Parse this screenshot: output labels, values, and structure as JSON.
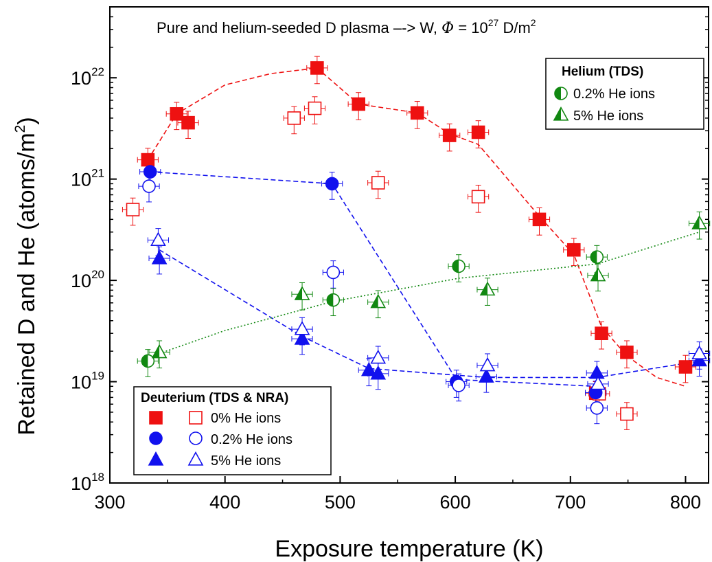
{
  "chart_data": {
    "type": "scatter",
    "title": "Pure and helium-seeded D plasma –-> W,",
    "title_phi_symbol": "Φ",
    "title_phi_rest": " = 10",
    "title_phi_exp": "27",
    "title_phi_unit": " D/m",
    "title_phi_unit_exp": "2",
    "xlabel": "Exposure temperature (K)",
    "ylabel": "Retained D and He (atoms/m",
    "ylabel_exp": "2",
    "ylabel_close": ")",
    "xlim": [
      300,
      820
    ],
    "ylim_log10": [
      18,
      22.7
    ],
    "yscale": "log",
    "x_ticks": [
      300,
      400,
      500,
      600,
      700,
      800
    ],
    "x_tick_labels": [
      "300",
      "400",
      "500",
      "600",
      "700",
      "800"
    ],
    "y_ticks_exp": [
      18,
      19,
      20,
      21,
      22
    ],
    "y_tick_base": "10",
    "y_tick_exps": [
      "18",
      "19",
      "20",
      "21",
      "22"
    ],
    "legend_deuterium": {
      "title": "Deuterium (TDS & NRA)",
      "entries": [
        "0% He ions",
        "0.2% He ions",
        "5% He ions"
      ]
    },
    "legend_helium": {
      "title": "Helium (TDS)",
      "entries": [
        "0.2% He ions",
        "5% He ions"
      ]
    },
    "colors": {
      "red": "#ee1111",
      "blue": "#1111ee",
      "green": "#118811"
    },
    "series": [
      {
        "id": "d-0-filled",
        "marker": "square",
        "fill": "filled",
        "color": "red",
        "points": [
          [
            333,
            1.55e+21
          ],
          [
            358,
            4.4e+21
          ],
          [
            368,
            3.6e+21
          ],
          [
            480,
            1.25e+22
          ],
          [
            516,
            5.5e+21
          ],
          [
            567,
            4.5e+21
          ],
          [
            595,
            2.7e+21
          ],
          [
            620,
            2.9e+21
          ],
          [
            673,
            4e+20
          ],
          [
            703,
            2e+20
          ],
          [
            727,
            3e+19
          ],
          [
            749,
            1.95e+19
          ],
          [
            800,
            1.4e+19
          ],
          [
            722,
            7.7e+18
          ]
        ]
      },
      {
        "id": "d-0-open",
        "marker": "square",
        "fill": "open",
        "color": "red",
        "points": [
          [
            320,
            5e+20
          ],
          [
            460,
            4e+21
          ],
          [
            478,
            5e+21
          ],
          [
            533,
            9.2e+20
          ],
          [
            620,
            6.7e+20
          ],
          [
            725,
            7.6e+18
          ],
          [
            749,
            4.8e+18
          ]
        ]
      },
      {
        "id": "d-02-filled",
        "marker": "circle",
        "fill": "filled",
        "color": "blue",
        "points": [
          [
            335,
            1.18e+21
          ],
          [
            493,
            9e+20
          ],
          [
            601,
            1e+19
          ],
          [
            722,
            7.8e+18
          ]
        ]
      },
      {
        "id": "d-02-open",
        "marker": "circle",
        "fill": "open",
        "color": "blue",
        "points": [
          [
            334,
            8.5e+20
          ],
          [
            494,
            1.2e+20
          ],
          [
            603,
            9.2e+18
          ],
          [
            723,
            5.5e+18
          ]
        ]
      },
      {
        "id": "d-5-filled",
        "marker": "triangle",
        "fill": "filled",
        "color": "blue",
        "points": [
          [
            343,
            1.65e+20
          ],
          [
            467,
            2.65e+19
          ],
          [
            525,
            1.3e+19
          ],
          [
            533,
            1.2e+19
          ],
          [
            627,
            1.12e+19
          ],
          [
            723,
            1.22e+19
          ],
          [
            812,
            1.62e+19
          ]
        ]
      },
      {
        "id": "d-5-open",
        "marker": "triangle",
        "fill": "open",
        "color": "blue",
        "points": [
          [
            342,
            2.5e+20
          ],
          [
            467,
            3.3e+19
          ],
          [
            533,
            1.72e+19
          ],
          [
            628,
            1.45e+19
          ],
          [
            724,
            9.5e+18
          ],
          [
            812,
            1.9e+19
          ]
        ]
      },
      {
        "id": "he-02",
        "marker": "circle",
        "fill": "half",
        "color": "green",
        "points": [
          [
            333,
            1.6e+19
          ],
          [
            494,
            6.4e+19
          ],
          [
            603,
            1.38e+20
          ],
          [
            723,
            1.7e+20
          ]
        ]
      },
      {
        "id": "he-5",
        "marker": "triangle",
        "fill": "half",
        "color": "green",
        "points": [
          [
            343,
            1.95e+19
          ],
          [
            467,
            7.3e+19
          ],
          [
            533,
            6.1e+19
          ],
          [
            628,
            8.1e+19
          ],
          [
            724,
            1.12e+20
          ],
          [
            812,
            3.65e+20
          ]
        ]
      }
    ],
    "error_bars": {
      "xerr_K": 9,
      "yerr_rel": 0.3
    },
    "fit_lines": [
      {
        "id": "fit-red",
        "color": "red",
        "style": "dashed",
        "points": [
          [
            333,
            1.55e+21
          ],
          [
            358,
            4.4e+21
          ],
          [
            400,
            8.5e+21
          ],
          [
            440,
            1.1e+22
          ],
          [
            480,
            1.25e+22
          ],
          [
            516,
            5.5e+21
          ],
          [
            567,
            4.5e+21
          ],
          [
            595,
            2.8e+21
          ],
          [
            620,
            2.2e+21
          ],
          [
            673,
            4.3e+20
          ],
          [
            703,
            1.8e+20
          ],
          [
            727,
            3.5e+19
          ],
          [
            749,
            1.8e+19
          ],
          [
            775,
            1.1e+19
          ],
          [
            800,
            9e+18
          ]
        ]
      },
      {
        "id": "fit-blue-02",
        "color": "blue",
        "style": "dashed",
        "points": [
          [
            335,
            1.18e+21
          ],
          [
            493,
            9e+20
          ],
          [
            601,
            1.05e+19
          ],
          [
            722,
            9e+18
          ]
        ]
      },
      {
        "id": "fit-blue-5",
        "color": "blue",
        "style": "dashed",
        "points": [
          [
            343,
            2e+20
          ],
          [
            467,
            2.8e+19
          ],
          [
            525,
            1.35e+19
          ],
          [
            627,
            1.1e+19
          ],
          [
            723,
            1.1e+19
          ],
          [
            812,
            1.6e+19
          ]
        ]
      },
      {
        "id": "fit-green",
        "color": "green",
        "style": "dotted",
        "points": [
          [
            343,
            1.9e+19
          ],
          [
            400,
            3.2e+19
          ],
          [
            494,
            6.2e+19
          ],
          [
            603,
            1.05e+20
          ],
          [
            723,
            1.45e+20
          ],
          [
            812,
            3e+20
          ]
        ]
      }
    ]
  }
}
